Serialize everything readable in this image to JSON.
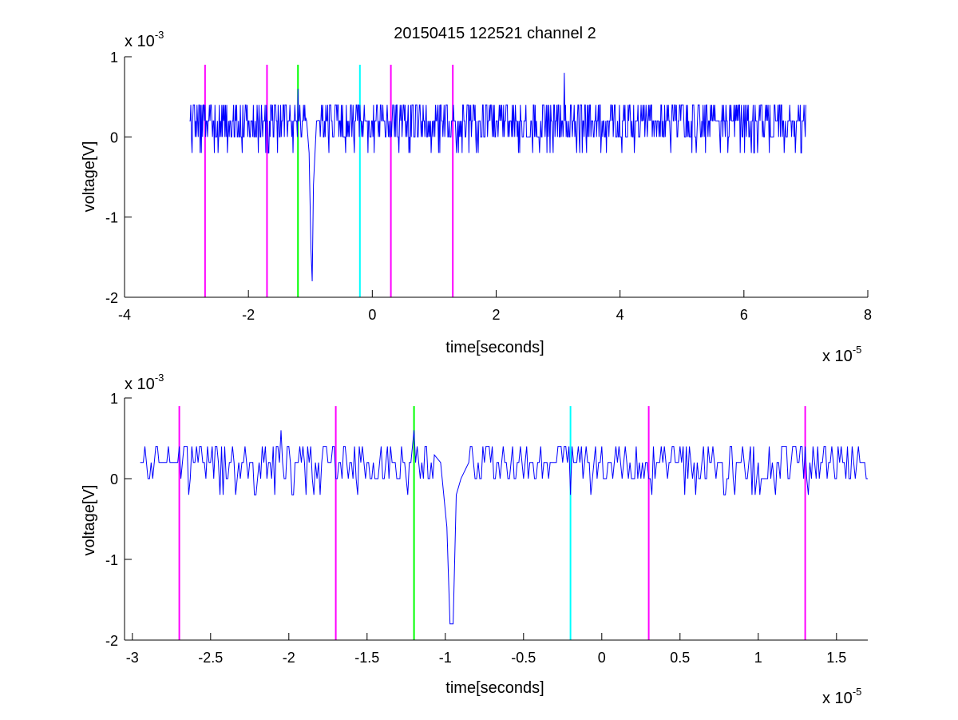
{
  "chart_data": [
    {
      "type": "line",
      "title": "20150415 122521 channel 2",
      "xlabel": "time[seconds]",
      "ylabel": "voltage[V]",
      "x_multiplier_text": "x 10",
      "x_multiplier_exp": "-5",
      "y_multiplier_text": "x 10",
      "y_multiplier_exp": "-3",
      "x_unit_scale": 1e-05,
      "y_unit_scale": 0.001,
      "xlim": [
        -4,
        8
      ],
      "ylim": [
        -2,
        1
      ],
      "xticks": [
        -4,
        -2,
        0,
        2,
        4,
        6,
        8
      ],
      "xtick_labels": [
        "-4",
        "-2",
        "0",
        "2",
        "4",
        "6",
        "8"
      ],
      "yticks": [
        -2,
        -1,
        0,
        1
      ],
      "ytick_labels": [
        "-2",
        "-1",
        "0",
        "1"
      ],
      "grid": false,
      "series": [
        {
          "color": "#0000ff",
          "x_range": [
            -2.95,
            7.0
          ],
          "baseline": 0.2,
          "noise_levels": [
            0,
            0.2,
            0.4
          ],
          "points": [
            [
              -2.95,
              0.2
            ],
            [
              -2.6,
              0.4
            ],
            [
              -1.2,
              0.6
            ],
            [
              -1.06,
              0.2
            ],
            [
              -1.02,
              -0.2
            ],
            [
              -0.99,
              -1.4
            ],
            [
              -0.97,
              -1.8
            ],
            [
              -0.95,
              -0.6
            ],
            [
              -0.9,
              0.2
            ],
            [
              3.1,
              0.8
            ],
            [
              7.0,
              0.2
            ]
          ]
        }
      ],
      "vertical_markers": [
        {
          "x": -2.7,
          "color": "#ff00ff"
        },
        {
          "x": -1.7,
          "color": "#ff00ff"
        },
        {
          "x": -1.2,
          "color": "#00ff00"
        },
        {
          "x": -0.2,
          "color": "#00ffff"
        },
        {
          "x": 0.3,
          "color": "#ff00ff"
        },
        {
          "x": 1.3,
          "color": "#ff00ff"
        }
      ]
    },
    {
      "type": "line",
      "title": "",
      "xlabel": "time[seconds]",
      "ylabel": "voltage[V]",
      "x_multiplier_text": "x 10",
      "x_multiplier_exp": "-5",
      "y_multiplier_text": "x 10",
      "y_multiplier_exp": "-3",
      "x_unit_scale": 1e-05,
      "y_unit_scale": 0.001,
      "xlim": [
        -3.05,
        1.7
      ],
      "ylim": [
        -2,
        1
      ],
      "xticks": [
        -3,
        -2.5,
        -2,
        -1.5,
        -1,
        -0.5,
        0,
        0.5,
        1,
        1.5
      ],
      "xtick_labels": [
        "-3",
        "-2.5",
        "-2",
        "-1.5",
        "-1",
        "-0.5",
        "0",
        "0.5",
        "1",
        "1.5"
      ],
      "yticks": [
        -2,
        -1,
        0,
        1
      ],
      "ytick_labels": [
        "-2",
        "-1",
        "0",
        "1"
      ],
      "grid": false,
      "series": [
        {
          "color": "#0000ff",
          "x_range": [
            -2.95,
            1.7
          ],
          "baseline": 0.2,
          "noise_levels": [
            0,
            0.2,
            0.4
          ],
          "points": [
            [
              -2.95,
              0.2
            ],
            [
              -2.05,
              0.6
            ],
            [
              -1.2,
              0.6
            ],
            [
              -1.03,
              0.2
            ],
            [
              -0.99,
              -0.6
            ],
            [
              -0.97,
              -1.8
            ],
            [
              -0.95,
              -1.8
            ],
            [
              -0.93,
              -0.2
            ],
            [
              -0.9,
              0.0
            ],
            [
              -0.85,
              0.2
            ],
            [
              1.7,
              0.2
            ]
          ]
        }
      ],
      "vertical_markers": [
        {
          "x": -2.7,
          "color": "#ff00ff"
        },
        {
          "x": -1.7,
          "color": "#ff00ff"
        },
        {
          "x": -1.2,
          "color": "#00ff00"
        },
        {
          "x": -0.2,
          "color": "#00ffff"
        },
        {
          "x": 0.3,
          "color": "#ff00ff"
        },
        {
          "x": 1.3,
          "color": "#ff00ff"
        }
      ]
    }
  ]
}
